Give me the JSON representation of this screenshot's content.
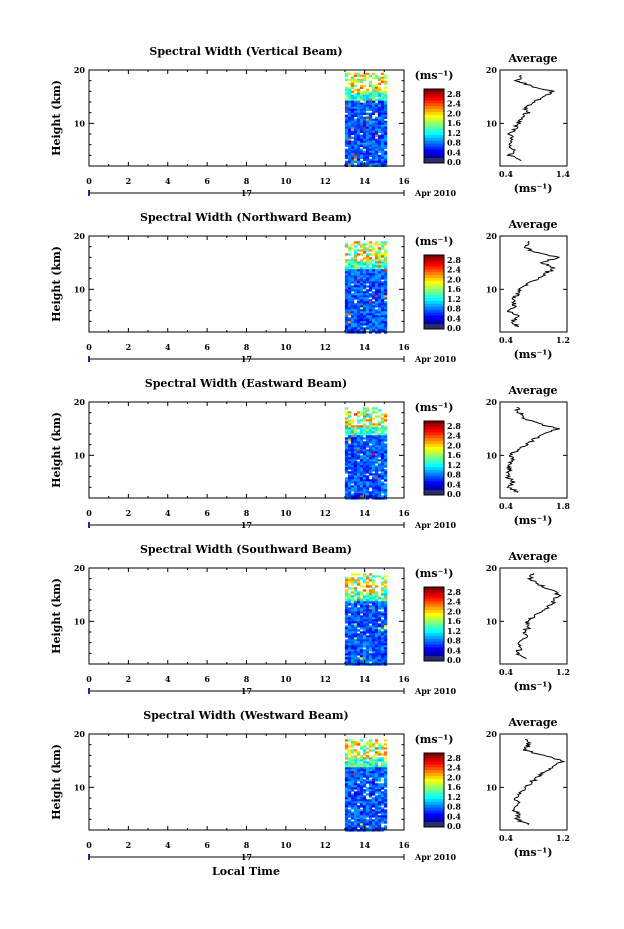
{
  "chart_data": [
    {
      "type": "heatmap",
      "title": "Spectral Width (Vertical Beam)",
      "ylabel": "Height (km)",
      "ylim": [
        2,
        20
      ],
      "y_ticks": [
        10,
        20
      ],
      "xlim": [
        0,
        16
      ],
      "x_ticks": [
        0,
        2,
        4,
        6,
        8,
        10,
        12,
        14,
        16
      ],
      "x_tick_labels": [
        "0",
        "2",
        "4",
        "6",
        "8",
        "10",
        "12",
        "14",
        "16"
      ],
      "data_time_range": [
        13,
        15
      ],
      "data_height_range": [
        2,
        19.5
      ],
      "day_label": "17",
      "date_label": "Apr 2010",
      "colorbar": {
        "unit": "(ms⁻¹)",
        "ticks": [
          "2.8",
          "2.4",
          "2.0",
          "1.6",
          "1.2",
          "0.8",
          "0.4",
          "0.0"
        ]
      },
      "profile": {
        "title": "Average",
        "xlabel": "(ms⁻¹)",
        "xlim": [
          0.4,
          1.4
        ],
        "x_tick_labels": [
          "0.4",
          "1.4"
        ],
        "y_ticks": [
          10,
          20
        ],
        "y": [
          3,
          4,
          5,
          6,
          7,
          8,
          9,
          10,
          11,
          12,
          13,
          14,
          15,
          16,
          17,
          18,
          19
        ],
        "x": [
          0.72,
          0.55,
          0.62,
          0.52,
          0.58,
          0.55,
          0.62,
          0.68,
          0.7,
          0.82,
          0.78,
          0.92,
          1.05,
          1.2,
          0.85,
          0.65,
          0.72
        ]
      }
    },
    {
      "type": "heatmap",
      "title": "Spectral Width (Northward Beam)",
      "ylabel": "Height (km)",
      "ylim": [
        2,
        20
      ],
      "y_ticks": [
        10,
        20
      ],
      "xlim": [
        0,
        16
      ],
      "x_ticks": [
        0,
        2,
        4,
        6,
        8,
        10,
        12,
        14,
        16
      ],
      "x_tick_labels": [
        "0",
        "2",
        "4",
        "6",
        "8",
        "10",
        "12",
        "14",
        "16"
      ],
      "data_time_range": [
        13,
        15
      ],
      "data_height_range": [
        2,
        19
      ],
      "day_label": "17",
      "date_label": "Apr 2010",
      "colorbar": {
        "unit": "(ms⁻¹)",
        "ticks": [
          "2.8",
          "2.4",
          "2.0",
          "1.6",
          "1.2",
          "0.8",
          "0.4",
          "0.0"
        ]
      },
      "profile": {
        "title": "Average",
        "xlabel": "(ms⁻¹)",
        "xlim": [
          0.4,
          1.2
        ],
        "x_tick_labels": [
          "0.4",
          "1.2"
        ],
        "y_ticks": [
          10,
          20
        ],
        "y": [
          3,
          4,
          5,
          6,
          7,
          8,
          9,
          10,
          11,
          12,
          13,
          14,
          15,
          16,
          17,
          18,
          19
        ],
        "x": [
          0.6,
          0.55,
          0.62,
          0.5,
          0.58,
          0.55,
          0.6,
          0.65,
          0.72,
          0.85,
          0.95,
          1.05,
          0.9,
          1.1,
          0.8,
          0.7,
          0.75
        ]
      }
    },
    {
      "type": "heatmap",
      "title": "Spectral Width (Eastward Beam)",
      "ylabel": "Height (km)",
      "ylim": [
        2,
        20
      ],
      "y_ticks": [
        10,
        20
      ],
      "xlim": [
        0,
        16
      ],
      "x_ticks": [
        0,
        2,
        4,
        6,
        8,
        10,
        12,
        14,
        16
      ],
      "x_tick_labels": [
        "0",
        "2",
        "4",
        "6",
        "8",
        "10",
        "12",
        "14",
        "16"
      ],
      "data_time_range": [
        13,
        15
      ],
      "data_height_range": [
        2,
        19
      ],
      "day_label": "17",
      "date_label": "Apr 2010",
      "colorbar": {
        "unit": "(ms⁻¹)",
        "ticks": [
          "2.8",
          "2.4",
          "2.0",
          "1.6",
          "1.2",
          "0.8",
          "0.4",
          "0.0"
        ]
      },
      "profile": {
        "title": "Average",
        "xlabel": "(ms⁻¹)",
        "xlim": [
          0.4,
          1.8
        ],
        "x_tick_labels": [
          "0.4",
          "1.8"
        ],
        "y_ticks": [
          10,
          20
        ],
        "y": [
          3,
          4,
          5,
          6,
          7,
          8,
          9,
          10,
          11,
          12,
          13,
          14,
          15,
          16,
          17,
          18,
          19
        ],
        "x": [
          0.8,
          0.6,
          0.7,
          0.55,
          0.6,
          0.58,
          0.65,
          0.62,
          0.75,
          0.95,
          1.1,
          1.3,
          1.6,
          1.2,
          0.9,
          0.8,
          0.75
        ]
      }
    },
    {
      "type": "heatmap",
      "title": "Spectral Width (Southward Beam)",
      "ylabel": "Height (km)",
      "ylim": [
        2,
        20
      ],
      "y_ticks": [
        10,
        20
      ],
      "xlim": [
        0,
        16
      ],
      "x_ticks": [
        0,
        2,
        4,
        6,
        8,
        10,
        12,
        14,
        16
      ],
      "x_tick_labels": [
        "0",
        "2",
        "4",
        "6",
        "8",
        "10",
        "12",
        "14",
        "16"
      ],
      "data_time_range": [
        13,
        15
      ],
      "data_height_range": [
        2,
        19
      ],
      "day_label": "17",
      "date_label": "Apr 2010",
      "colorbar": {
        "unit": "(ms⁻¹)",
        "ticks": [
          "2.8",
          "2.4",
          "2.0",
          "1.6",
          "1.2",
          "0.8",
          "0.4",
          "0.0"
        ]
      },
      "profile": {
        "title": "Average",
        "xlabel": "(ms⁻¹)",
        "xlim": [
          0.4,
          1.2
        ],
        "x_tick_labels": [
          "0.4",
          "1.2"
        ],
        "y_ticks": [
          10,
          20
        ],
        "y": [
          3,
          4,
          5,
          6,
          7,
          8,
          9,
          10,
          11,
          12,
          13,
          14,
          15,
          16,
          17,
          18,
          19
        ],
        "x": [
          0.7,
          0.6,
          0.65,
          0.62,
          0.7,
          0.68,
          0.75,
          0.72,
          0.8,
          0.9,
          1.0,
          1.05,
          1.1,
          1.0,
          0.85,
          0.75,
          0.8
        ]
      }
    },
    {
      "type": "heatmap",
      "title": "Spectral Width (Westward Beam)",
      "ylabel": "Height (km)",
      "ylim": [
        2,
        20
      ],
      "y_ticks": [
        10,
        20
      ],
      "xlim": [
        0,
        16
      ],
      "x_ticks": [
        0,
        2,
        4,
        6,
        8,
        10,
        12,
        14,
        16
      ],
      "x_tick_labels": [
        "0",
        "2",
        "4",
        "6",
        "8",
        "10",
        "12",
        "14",
        "16"
      ],
      "data_time_range": [
        13,
        15
      ],
      "data_height_range": [
        2,
        19
      ],
      "day_label": "17",
      "date_label": "Apr 2010",
      "xlabel": "Local Time",
      "colorbar": {
        "unit": "(ms⁻¹)",
        "ticks": [
          "2.8",
          "2.4",
          "2.0",
          "1.6",
          "1.2",
          "0.8",
          "0.4",
          "0.0"
        ]
      },
      "profile": {
        "title": "Average",
        "xlabel": "(ms⁻¹)",
        "xlim": [
          0.4,
          1.2
        ],
        "x_tick_labels": [
          "0.4",
          "1.2"
        ],
        "y_ticks": [
          10,
          20
        ],
        "y": [
          3,
          4,
          5,
          6,
          7,
          8,
          9,
          10,
          11,
          12,
          13,
          14,
          15,
          16,
          17,
          18,
          19
        ],
        "x": [
          0.75,
          0.6,
          0.62,
          0.55,
          0.62,
          0.58,
          0.65,
          0.7,
          0.78,
          0.85,
          0.95,
          1.05,
          1.15,
          0.9,
          0.7,
          0.75,
          0.7
        ]
      }
    }
  ]
}
